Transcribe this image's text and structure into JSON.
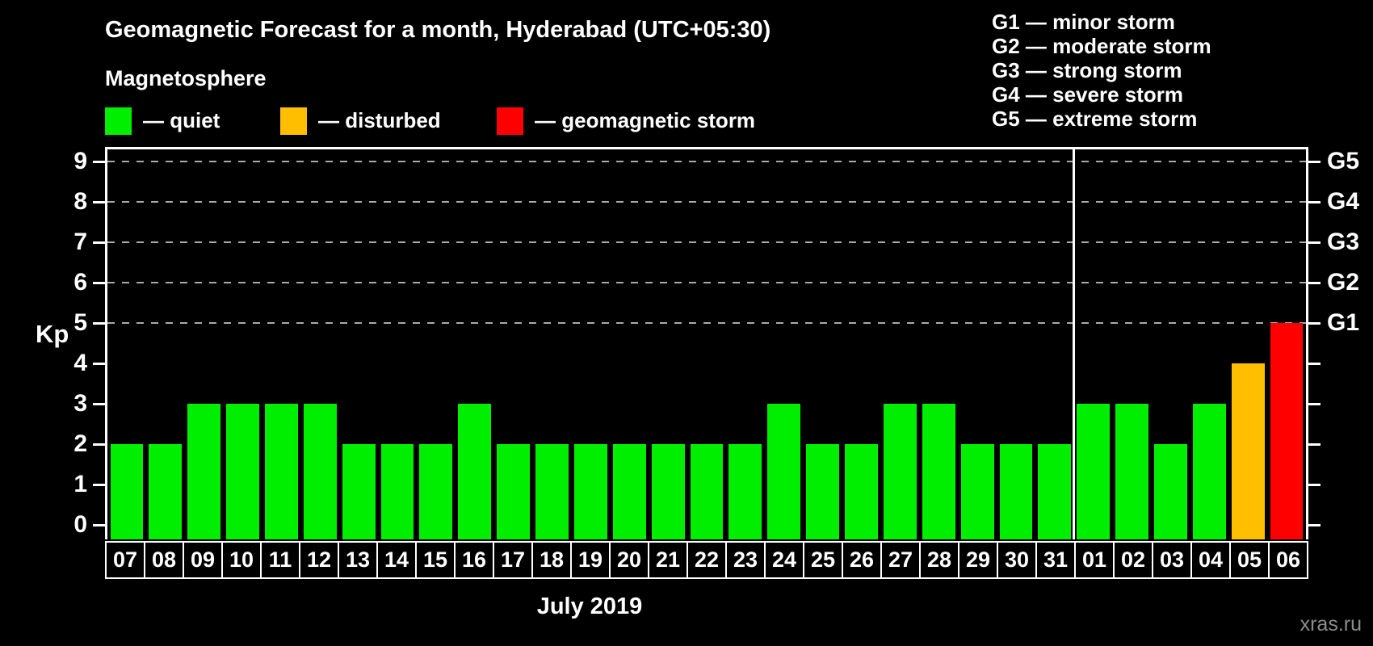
{
  "title": "Geomagnetic Forecast for a month, Hyderabad (UTC+05:30)",
  "watermark": "xras.ru",
  "magnetosphere": {
    "heading": "Magnetosphere",
    "items": [
      {
        "name": "quiet",
        "label": "— quiet",
        "color": "#00ee00"
      },
      {
        "name": "disturbed",
        "label": "— disturbed",
        "color": "#ffbe00"
      },
      {
        "name": "storm",
        "label": "— geomagnetic storm",
        "color": "#ff0000"
      }
    ]
  },
  "g_legend": [
    "G1 — minor storm",
    "G2 — moderate storm",
    "G3 — strong storm",
    "G4 — severe storm",
    "G5 — extreme storm"
  ],
  "chart_data": {
    "type": "bar",
    "title": "Geomagnetic Forecast for a month, Hyderabad (UTC+05:30)",
    "ylabel": "Kp",
    "month_label": "July 2019",
    "ylim": [
      0,
      9
    ],
    "yticks": [
      0,
      1,
      2,
      3,
      4,
      5,
      6,
      7,
      8,
      9
    ],
    "gridlines_kp": [
      5,
      6,
      7,
      8,
      9
    ],
    "grid": "dashed",
    "legend_position": "top",
    "right_axis": [
      {
        "label": "G1",
        "kp": 5
      },
      {
        "label": "G2",
        "kp": 6
      },
      {
        "label": "G3",
        "kp": 7
      },
      {
        "label": "G4",
        "kp": 8
      },
      {
        "label": "G5",
        "kp": 9
      }
    ],
    "categories": [
      "07",
      "08",
      "09",
      "10",
      "11",
      "12",
      "13",
      "14",
      "15",
      "16",
      "17",
      "18",
      "19",
      "20",
      "21",
      "22",
      "23",
      "24",
      "25",
      "26",
      "27",
      "28",
      "29",
      "30",
      "31",
      "01",
      "02",
      "03",
      "04",
      "05",
      "06"
    ],
    "values": [
      2,
      2,
      3,
      3,
      3,
      3,
      2,
      2,
      2,
      3,
      2,
      2,
      2,
      2,
      2,
      2,
      2,
      3,
      2,
      2,
      3,
      3,
      2,
      2,
      2,
      3,
      3,
      2,
      3,
      4,
      5
    ],
    "statuses": [
      "quiet",
      "quiet",
      "quiet",
      "quiet",
      "quiet",
      "quiet",
      "quiet",
      "quiet",
      "quiet",
      "quiet",
      "quiet",
      "quiet",
      "quiet",
      "quiet",
      "quiet",
      "quiet",
      "quiet",
      "quiet",
      "quiet",
      "quiet",
      "quiet",
      "quiet",
      "quiet",
      "quiet",
      "quiet",
      "quiet",
      "quiet",
      "quiet",
      "quiet",
      "disturbed",
      "storm"
    ],
    "divider_after_index": 25
  }
}
